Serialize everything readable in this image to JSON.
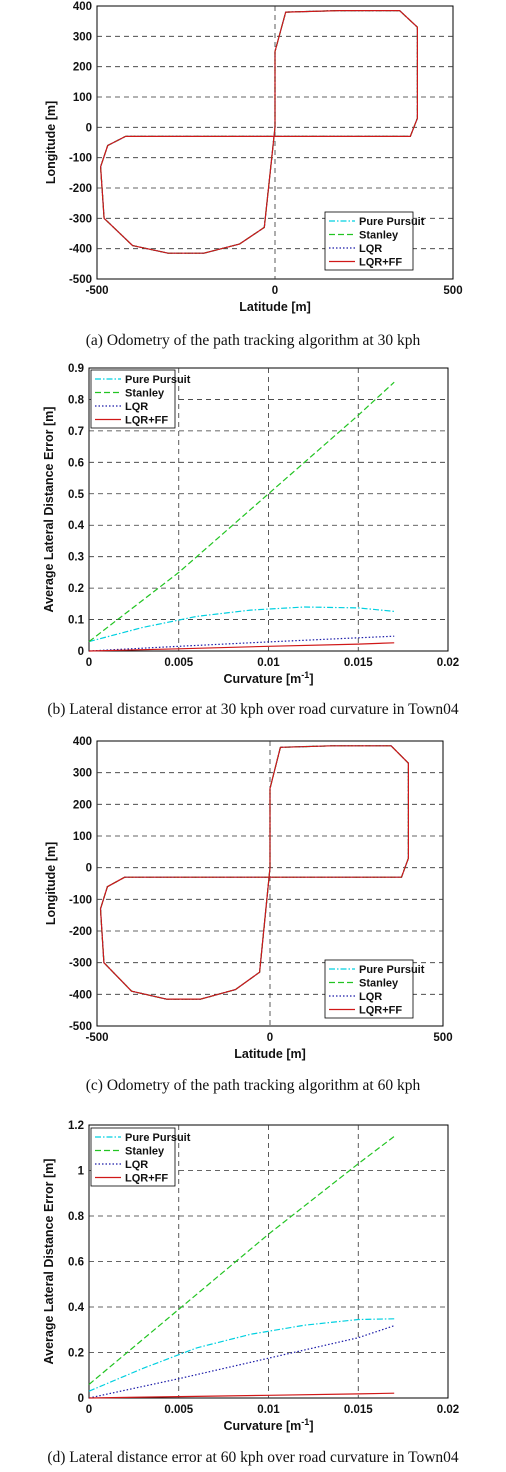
{
  "chart_data": [
    {
      "type": "line",
      "subtype": "trajectory",
      "xlabel": "Latitude [m]",
      "ylabel": "Longitude [m]",
      "xlim": [
        -500,
        500
      ],
      "ylim": [
        -500,
        400
      ],
      "xticks": [
        -500,
        0,
        500
      ],
      "yticks": [
        400,
        300,
        200,
        100,
        0,
        -100,
        -200,
        -300,
        -400,
        -500
      ],
      "grid": true,
      "legend_position": "bottom-right",
      "caption": "(a) Odometry of the path tracking algorithm at 30 kph",
      "series": [
        {
          "name": "Pure Pursuit",
          "color": "#00d0e0",
          "style": "dashdot",
          "x": [
            0,
            0,
            30,
            180,
            350,
            400,
            400,
            380,
            0,
            -420,
            -470,
            -490,
            -480,
            -400,
            -300,
            -200,
            -100,
            -30,
            0
          ],
          "y": [
            0,
            250,
            380,
            385,
            385,
            330,
            30,
            -30,
            -30,
            -30,
            -60,
            -130,
            -300,
            -390,
            -415,
            -415,
            -385,
            -330,
            0
          ]
        },
        {
          "name": "Stanley",
          "color": "#22c422",
          "style": "dashed",
          "x": [
            0,
            0,
            30,
            180,
            350,
            400,
            400,
            380,
            0,
            -420,
            -470,
            -490,
            -480,
            -400,
            -300,
            -200,
            -100,
            -30,
            0
          ],
          "y": [
            0,
            250,
            380,
            385,
            385,
            330,
            30,
            -30,
            -30,
            -30,
            -60,
            -130,
            -300,
            -390,
            -415,
            -415,
            -385,
            -330,
            0
          ]
        },
        {
          "name": "LQR",
          "color": "#1a1aa8",
          "style": "dotted",
          "x": [
            0,
            0,
            30,
            180,
            350,
            400,
            400,
            380,
            0,
            -420,
            -470,
            -490,
            -480,
            -400,
            -300,
            -200,
            -100,
            -30,
            0
          ],
          "y": [
            0,
            250,
            380,
            385,
            385,
            330,
            30,
            -30,
            -30,
            -30,
            -60,
            -130,
            -300,
            -390,
            -415,
            -415,
            -385,
            -330,
            0
          ]
        },
        {
          "name": "LQR+FF",
          "color": "#d01818",
          "style": "solid",
          "x": [
            0,
            0,
            30,
            180,
            350,
            400,
            400,
            380,
            0,
            -420,
            -470,
            -490,
            -480,
            -400,
            -300,
            -200,
            -100,
            -30,
            0
          ],
          "y": [
            0,
            250,
            380,
            385,
            385,
            330,
            30,
            -30,
            -30,
            -30,
            -60,
            -130,
            -300,
            -390,
            -415,
            -415,
            -385,
            -330,
            0
          ]
        }
      ]
    },
    {
      "type": "line",
      "xlabel": "Curvature [m",
      "xlabel_sup": "-1",
      "xlabel_end": "]",
      "ylabel": "Average Lateral Distance Error [m]",
      "xlim": [
        0,
        0.02
      ],
      "ylim": [
        0,
        0.9
      ],
      "xticks": [
        0,
        0.005,
        0.01,
        0.015,
        0.02
      ],
      "yticks": [
        0.9,
        0.8,
        0.7,
        0.6,
        0.5,
        0.4,
        0.3,
        0.2,
        0.1,
        0
      ],
      "grid": true,
      "legend_position": "top-left",
      "caption": "(b) Lateral distance error at 30 kph over road curvature in Town04",
      "series": [
        {
          "name": "Pure Pursuit",
          "color": "#00d0e0",
          "style": "dashdot",
          "x": [
            0,
            0.003,
            0.006,
            0.009,
            0.012,
            0.015,
            0.017
          ],
          "y": [
            0.03,
            0.075,
            0.11,
            0.13,
            0.14,
            0.137,
            0.126
          ]
        },
        {
          "name": "Stanley",
          "color": "#22c422",
          "style": "dashed",
          "x": [
            0,
            0.005,
            0.01,
            0.015,
            0.017
          ],
          "y": [
            0.03,
            0.25,
            0.5,
            0.75,
            0.855
          ]
        },
        {
          "name": "LQR",
          "color": "#1a1aa8",
          "style": "dotted",
          "x": [
            0,
            0.005,
            0.01,
            0.015,
            0.017
          ],
          "y": [
            0.0,
            0.015,
            0.029,
            0.042,
            0.047
          ]
        },
        {
          "name": "LQR+FF",
          "color": "#d01818",
          "style": "solid",
          "x": [
            0,
            0.005,
            0.01,
            0.015,
            0.017
          ],
          "y": [
            0.0,
            0.007,
            0.015,
            0.022,
            0.026
          ]
        }
      ]
    },
    {
      "type": "line",
      "subtype": "trajectory",
      "xlabel": "Latitude [m]",
      "ylabel": "Longitude [m]",
      "xlim": [
        -500,
        500
      ],
      "ylim": [
        -500,
        400
      ],
      "xticks": [
        -500,
        0,
        500
      ],
      "yticks": [
        400,
        300,
        200,
        100,
        0,
        -100,
        -200,
        -300,
        -400,
        -500
      ],
      "grid": true,
      "legend_position": "bottom-right",
      "caption": "(c) Odometry of the path tracking algorithm at 60 kph",
      "series": [
        {
          "name": "Pure Pursuit",
          "color": "#00d0e0",
          "style": "dashdot",
          "x": [
            0,
            0,
            30,
            180,
            350,
            400,
            400,
            380,
            0,
            -420,
            -470,
            -490,
            -480,
            -400,
            -300,
            -200,
            -100,
            -30,
            0
          ],
          "y": [
            0,
            250,
            380,
            385,
            385,
            330,
            30,
            -30,
            -30,
            -30,
            -60,
            -130,
            -300,
            -390,
            -415,
            -415,
            -385,
            -330,
            0
          ]
        },
        {
          "name": "Stanley",
          "color": "#22c422",
          "style": "dashed",
          "x": [
            0,
            0,
            30,
            180,
            350,
            400,
            400,
            380,
            0,
            -420,
            -470,
            -490,
            -480,
            -400,
            -300,
            -200,
            -100,
            -30,
            0
          ],
          "y": [
            0,
            250,
            380,
            385,
            385,
            330,
            30,
            -30,
            -30,
            -30,
            -60,
            -130,
            -300,
            -390,
            -415,
            -415,
            -385,
            -330,
            0
          ]
        },
        {
          "name": "LQR",
          "color": "#1a1aa8",
          "style": "dotted",
          "x": [
            0,
            0,
            30,
            180,
            350,
            400,
            400,
            380,
            0,
            -420,
            -470,
            -490,
            -480,
            -400,
            -300,
            -200,
            -100,
            -30,
            0
          ],
          "y": [
            0,
            250,
            380,
            385,
            385,
            330,
            30,
            -30,
            -30,
            -30,
            -60,
            -130,
            -300,
            -390,
            -415,
            -415,
            -385,
            -330,
            0
          ]
        },
        {
          "name": "LQR+FF",
          "color": "#d01818",
          "style": "solid",
          "x": [
            0,
            0,
            30,
            180,
            350,
            400,
            400,
            380,
            0,
            -420,
            -470,
            -490,
            -480,
            -400,
            -300,
            -200,
            -100,
            -30,
            0
          ],
          "y": [
            0,
            250,
            380,
            385,
            385,
            330,
            30,
            -30,
            -30,
            -30,
            -60,
            -130,
            -300,
            -390,
            -415,
            -415,
            -385,
            -330,
            0
          ]
        }
      ]
    },
    {
      "type": "line",
      "xlabel": "Curvature [m",
      "xlabel_sup": "-1",
      "xlabel_end": "]",
      "ylabel": "Average Lateral Distance Error [m]",
      "xlim": [
        0,
        0.02
      ],
      "ylim": [
        0,
        1.2
      ],
      "xticks": [
        0,
        0.005,
        0.01,
        0.015,
        0.02
      ],
      "yticks": [
        1.2,
        1,
        0.8,
        0.6,
        0.4,
        0.2,
        0
      ],
      "grid": true,
      "legend_position": "top-left",
      "caption": "(d) Lateral distance error at 60 kph over road curvature in Town04",
      "series": [
        {
          "name": "Pure Pursuit",
          "color": "#00d0e0",
          "style": "dashdot",
          "x": [
            0,
            0.003,
            0.006,
            0.009,
            0.012,
            0.015,
            0.017
          ],
          "y": [
            0.03,
            0.13,
            0.22,
            0.28,
            0.32,
            0.345,
            0.348
          ]
        },
        {
          "name": "Stanley",
          "color": "#22c422",
          "style": "dashed",
          "x": [
            0,
            0.005,
            0.01,
            0.015,
            0.017
          ],
          "y": [
            0.06,
            0.39,
            0.72,
            1.03,
            1.15
          ]
        },
        {
          "name": "LQR",
          "color": "#1a1aa8",
          "style": "dotted",
          "x": [
            0,
            0.005,
            0.01,
            0.015,
            0.017
          ],
          "y": [
            0.0,
            0.085,
            0.175,
            0.265,
            0.318
          ]
        },
        {
          "name": "LQR+FF",
          "color": "#d01818",
          "style": "solid",
          "x": [
            0,
            0.005,
            0.01,
            0.015,
            0.017
          ],
          "y": [
            0.0,
            0.006,
            0.012,
            0.018,
            0.021
          ]
        }
      ]
    }
  ]
}
